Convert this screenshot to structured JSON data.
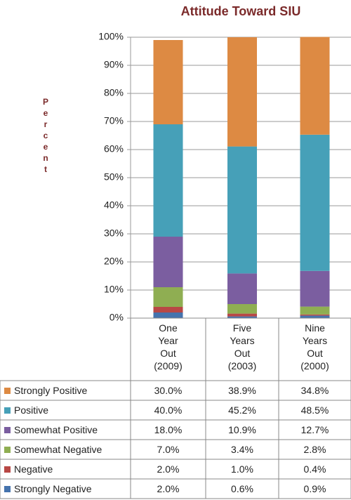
{
  "chart_data": {
    "type": "stacked_bar",
    "title": "Attitude Toward SIU",
    "y_label": "Percent",
    "categories": [
      "One\nYear\nOut\n(2009)",
      "Five\nYears\nOut\n(2003)",
      "Nine\nYears\nOut\n(2000)"
    ],
    "ylim": [
      0,
      100
    ],
    "yticks": [
      {
        "value": 0,
        "label": "0%"
      },
      {
        "value": 10,
        "label": "10%"
      },
      {
        "value": 20,
        "label": "20%"
      },
      {
        "value": 30,
        "label": "30%"
      },
      {
        "value": 40,
        "label": "40%"
      },
      {
        "value": 50,
        "label": "50%"
      },
      {
        "value": 60,
        "label": "60%"
      },
      {
        "value": 70,
        "label": "70%"
      },
      {
        "value": 80,
        "label": "80%"
      },
      {
        "value": 90,
        "label": "90%"
      },
      {
        "value": 100,
        "label": "100%"
      }
    ],
    "grid": true,
    "series": [
      {
        "name": "Strongly Positive",
        "color": "#dd8a43",
        "values": [
          30.0,
          38.9,
          34.8
        ],
        "value_labels": [
          "30.0%",
          "38.9%",
          "34.8%"
        ]
      },
      {
        "name": "Positive",
        "color": "#46a0b8",
        "values": [
          40.0,
          45.2,
          48.5
        ],
        "value_labels": [
          "40.0%",
          "45.2%",
          "48.5%"
        ]
      },
      {
        "name": "Somewhat Positive",
        "color": "#7b5ea0",
        "values": [
          18.0,
          10.9,
          12.7
        ],
        "value_labels": [
          "18.0%",
          "10.9%",
          "12.7%"
        ]
      },
      {
        "name": "Somewhat Negative",
        "color": "#8fae52",
        "values": [
          7.0,
          3.4,
          2.8
        ],
        "value_labels": [
          "7.0%",
          "3.4%",
          "2.8%"
        ]
      },
      {
        "name": "Negative",
        "color": "#b84845",
        "values": [
          2.0,
          1.0,
          0.4
        ],
        "value_labels": [
          "2.0%",
          "1.0%",
          "0.4%"
        ]
      },
      {
        "name": "Strongly Negative",
        "color": "#4573ad",
        "values": [
          2.0,
          0.6,
          0.9
        ],
        "value_labels": [
          "2.0%",
          "0.6%",
          "0.9%"
        ]
      }
    ]
  }
}
